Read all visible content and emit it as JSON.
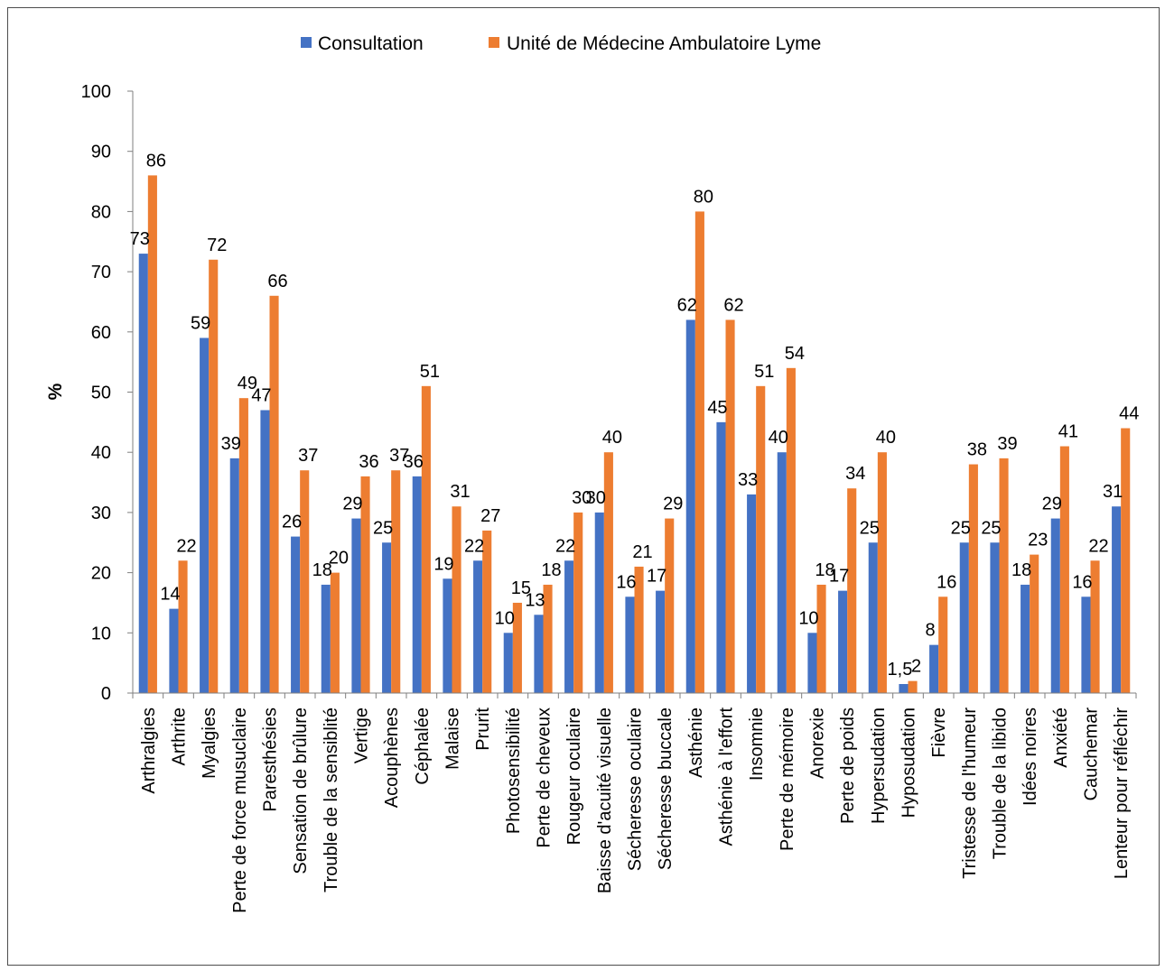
{
  "chart_data": {
    "type": "bar",
    "title": "",
    "xlabel": "",
    "ylabel": "%",
    "ylim": [
      0,
      100
    ],
    "yticks": [
      "0",
      "10",
      "20",
      "30",
      "40",
      "50",
      "60",
      "70",
      "80",
      "90",
      "100"
    ],
    "grid": false,
    "legend_position": "top",
    "categories": [
      "Arthralgies",
      "Arthrite",
      "Myalgies",
      "Perte de force musuclaire",
      "Paresthésies",
      "Sensation de brûlure",
      "Trouble de la sensiblité",
      "Vertige",
      "Acouphènes",
      "Céphalée",
      "Malaise",
      "Prurit",
      "Photosensibilité",
      "Perte de cheveux",
      "Rougeur oculaire",
      "Baisse d'acuité visuelle",
      "Sécheresse oculaire",
      "Sécheresse buccale",
      "Asthénie",
      "Asthénie à l'effort",
      "Insomnie",
      "Perte de mémoire",
      "Anorexie",
      "Perte de poids",
      "Hypersudation",
      "Hyposudation",
      "Fièvre",
      "Tristesse de l'humeur",
      "Trouble de la libido",
      "Idées noires",
      "Anxiété",
      "Cauchemar",
      "Lenteur pour réfléchir"
    ],
    "series": [
      {
        "name": "Consultation",
        "color": "#4472C4",
        "values": [
          73,
          14,
          59,
          39,
          47,
          26,
          18,
          29,
          25,
          36,
          19,
          22,
          10,
          13,
          22,
          30,
          16,
          17,
          62,
          45,
          33,
          40,
          10,
          17,
          25,
          1.5,
          8,
          25,
          25,
          18,
          29,
          16,
          31
        ],
        "labels": [
          "73",
          "14",
          "59",
          "39",
          "47",
          "26",
          "18",
          "29",
          "25",
          "36",
          "19",
          "22",
          "10",
          "13",
          "22",
          "30",
          "16",
          "17",
          "62",
          "45",
          "33",
          "40",
          "10",
          "17",
          "25",
          "1,5",
          "8",
          "25",
          "25",
          "18",
          "29",
          "16",
          "31"
        ]
      },
      {
        "name": "Unité de Médecine Ambulatoire Lyme",
        "color": "#ED7D31",
        "values": [
          86,
          22,
          72,
          49,
          66,
          37,
          20,
          36,
          37,
          51,
          31,
          27,
          15,
          18,
          30,
          40,
          21,
          29,
          80,
          62,
          51,
          54,
          18,
          34,
          40,
          2,
          16,
          38,
          39,
          23,
          41,
          22,
          44
        ],
        "labels": [
          "86",
          "22",
          "72",
          "49",
          "66",
          "37",
          "20",
          "36",
          "37",
          "51",
          "31",
          "27",
          "15",
          "18",
          "30",
          "40",
          "21",
          "29",
          "80",
          "62",
          "51",
          "54",
          "18",
          "34",
          "40",
          "2",
          "16",
          "38",
          "39",
          "23",
          "41",
          "22",
          "44"
        ]
      }
    ]
  }
}
